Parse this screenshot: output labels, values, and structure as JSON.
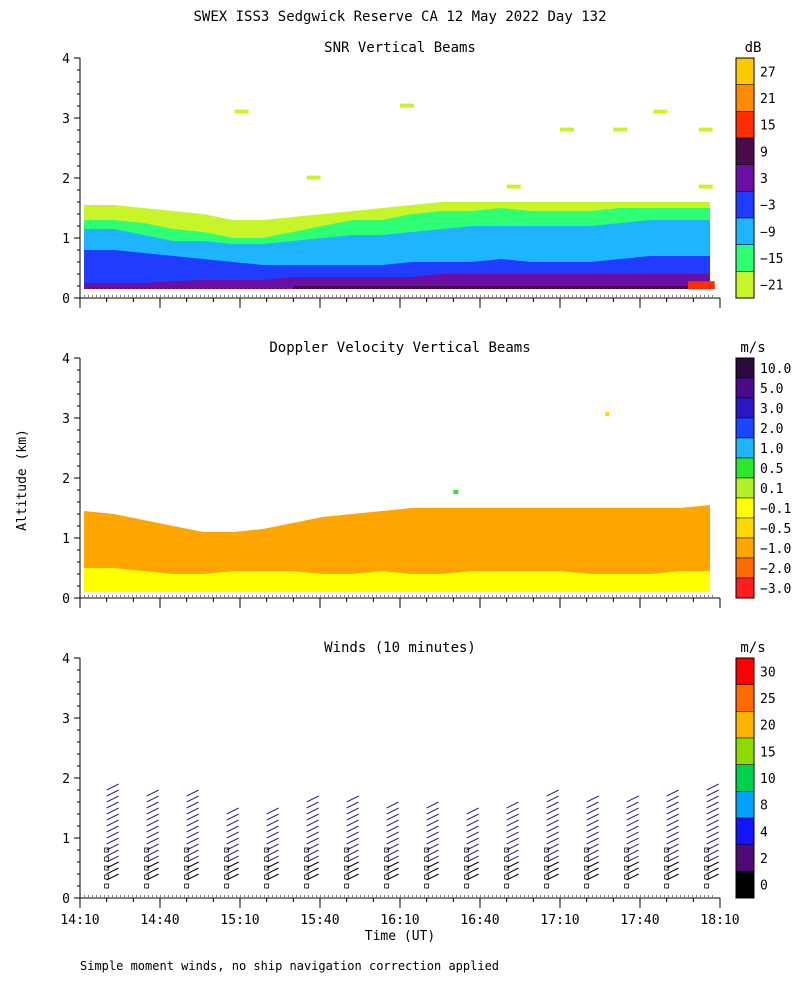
{
  "title": "SWEX ISS3 Sedgwick Reserve CA  12 May 2022 Day 132",
  "shared_ylabel": "Altitude (km)",
  "xlabel": "Time (UT)",
  "footer": "Simple moment winds, no ship navigation correction applied",
  "x_ticks": [
    "14:10",
    "14:40",
    "15:10",
    "15:40",
    "16:10",
    "16:40",
    "17:10",
    "17:40",
    "18:10"
  ],
  "chart_data": [
    {
      "type": "heatmap",
      "title": "SNR Vertical Beams",
      "xlabel": "Time (UT)",
      "ylabel": "Altitude (km)",
      "xlim": [
        "14:10",
        "18:10"
      ],
      "ylim": [
        0,
        4
      ],
      "y_ticks": [
        "0",
        "1",
        "2",
        "3",
        "4"
      ],
      "colorbar": {
        "unit": "dB",
        "labels": [
          "27",
          "21",
          "15",
          "9",
          "3",
          "−3",
          "−9",
          "−15",
          "−21"
        ],
        "colors": [
          "#ffc800",
          "#ff8c00",
          "#ff2d00",
          "#4b0a4b",
          "#6a0fa3",
          "#1f3cff",
          "#1eb4ff",
          "#2eff73",
          "#c8f529"
        ]
      },
      "layers": [
        {
          "name": "-21..-15",
          "top_km": [
            1.55,
            1.55,
            1.5,
            1.45,
            1.4,
            1.3,
            1.3,
            1.35,
            1.4,
            1.45,
            1.5,
            1.55,
            1.6,
            1.6,
            1.6,
            1.6,
            1.6,
            1.6,
            1.6,
            1.6,
            1.6,
            1.6
          ]
        },
        {
          "name": "-15..-9",
          "top_km": [
            1.3,
            1.3,
            1.25,
            1.15,
            1.1,
            1.0,
            1.0,
            1.1,
            1.2,
            1.3,
            1.3,
            1.4,
            1.45,
            1.45,
            1.5,
            1.45,
            1.45,
            1.45,
            1.5,
            1.5,
            1.5,
            1.5
          ]
        },
        {
          "name": "-9..-3",
          "top_km": [
            1.15,
            1.15,
            1.05,
            0.95,
            0.95,
            0.9,
            0.9,
            0.95,
            1.0,
            1.05,
            1.05,
            1.1,
            1.15,
            1.2,
            1.2,
            1.2,
            1.2,
            1.2,
            1.25,
            1.3,
            1.3,
            1.3
          ]
        },
        {
          "name": "-3..3",
          "top_km": [
            0.8,
            0.8,
            0.75,
            0.7,
            0.65,
            0.6,
            0.55,
            0.55,
            0.55,
            0.55,
            0.55,
            0.6,
            0.6,
            0.6,
            0.65,
            0.6,
            0.6,
            0.6,
            0.65,
            0.7,
            0.7,
            0.7
          ]
        },
        {
          "name": "3..9",
          "top_km": [
            0.25,
            0.25,
            0.25,
            0.28,
            0.3,
            0.3,
            0.3,
            0.35,
            0.35,
            0.35,
            0.35,
            0.35,
            0.4,
            0.4,
            0.4,
            0.4,
            0.4,
            0.4,
            0.4,
            0.4,
            0.4,
            0.4
          ]
        }
      ]
    },
    {
      "type": "heatmap",
      "title": "Doppler Velocity Vertical Beams",
      "xlabel": "Time (UT)",
      "ylabel": "Altitude (km)",
      "xlim": [
        "14:10",
        "18:10"
      ],
      "ylim": [
        0,
        4
      ],
      "y_ticks": [
        "0",
        "1",
        "2",
        "3",
        "4"
      ],
      "colorbar": {
        "unit": "m/s",
        "labels": [
          "10.0",
          "5.0",
          "3.0",
          "2.0",
          "1.0",
          "0.5",
          "0.1",
          "−0.1",
          "−0.5",
          "−1.0",
          "−2.0",
          "−3.0"
        ],
        "colors": [
          "#2d0a3c",
          "#4b0a8c",
          "#2a18c8",
          "#1a46ff",
          "#1eb4ff",
          "#2ee62e",
          "#b4f028",
          "#ffff00",
          "#ffd700",
          "#ffa500",
          "#ff6a00",
          "#ff1e1e"
        ]
      },
      "layers": [
        {
          "name": "-0.5..-0.1",
          "top_km": [
            1.45,
            1.4,
            1.3,
            1.2,
            1.1,
            1.1,
            1.15,
            1.25,
            1.35,
            1.4,
            1.45,
            1.5,
            1.5,
            1.5,
            1.5,
            1.5,
            1.5,
            1.5,
            1.5,
            1.5,
            1.5,
            1.55
          ]
        },
        {
          "name": "-0.1..0.1",
          "top_km": [
            0.5,
            0.5,
            0.45,
            0.4,
            0.4,
            0.45,
            0.45,
            0.45,
            0.4,
            0.4,
            0.45,
            0.4,
            0.4,
            0.45,
            0.45,
            0.45,
            0.45,
            0.4,
            0.4,
            0.4,
            0.45,
            0.45
          ]
        }
      ]
    },
    {
      "type": "scatter",
      "title": "Winds (10 minutes)",
      "xlabel": "Time (UT)",
      "ylabel": "Altitude (km)",
      "xlim": [
        "14:10",
        "18:10"
      ],
      "ylim": [
        0,
        4
      ],
      "y_ticks": [
        "0",
        "1",
        "2",
        "3",
        "4"
      ],
      "colorbar": {
        "unit": "m/s",
        "labels": [
          "30",
          "25",
          "20",
          "15",
          "10",
          "8",
          "4",
          "2",
          "0"
        ],
        "colors": [
          "#ff0000",
          "#ff6a00",
          "#ffb400",
          "#8cdc00",
          "#00d250",
          "#00a0ff",
          "#1414ff",
          "#500a78",
          "#000000"
        ]
      },
      "profile_times_min": [
        10,
        25,
        40,
        55,
        70,
        85,
        100,
        115,
        130,
        145,
        160,
        175,
        190,
        205,
        220,
        235
      ],
      "profile_top_km": [
        1.9,
        1.8,
        1.8,
        1.5,
        1.5,
        1.7,
        1.7,
        1.6,
        1.6,
        1.5,
        1.6,
        1.8,
        1.7,
        1.7,
        1.8,
        1.9
      ],
      "profile_color": "#3c1e96"
    }
  ]
}
